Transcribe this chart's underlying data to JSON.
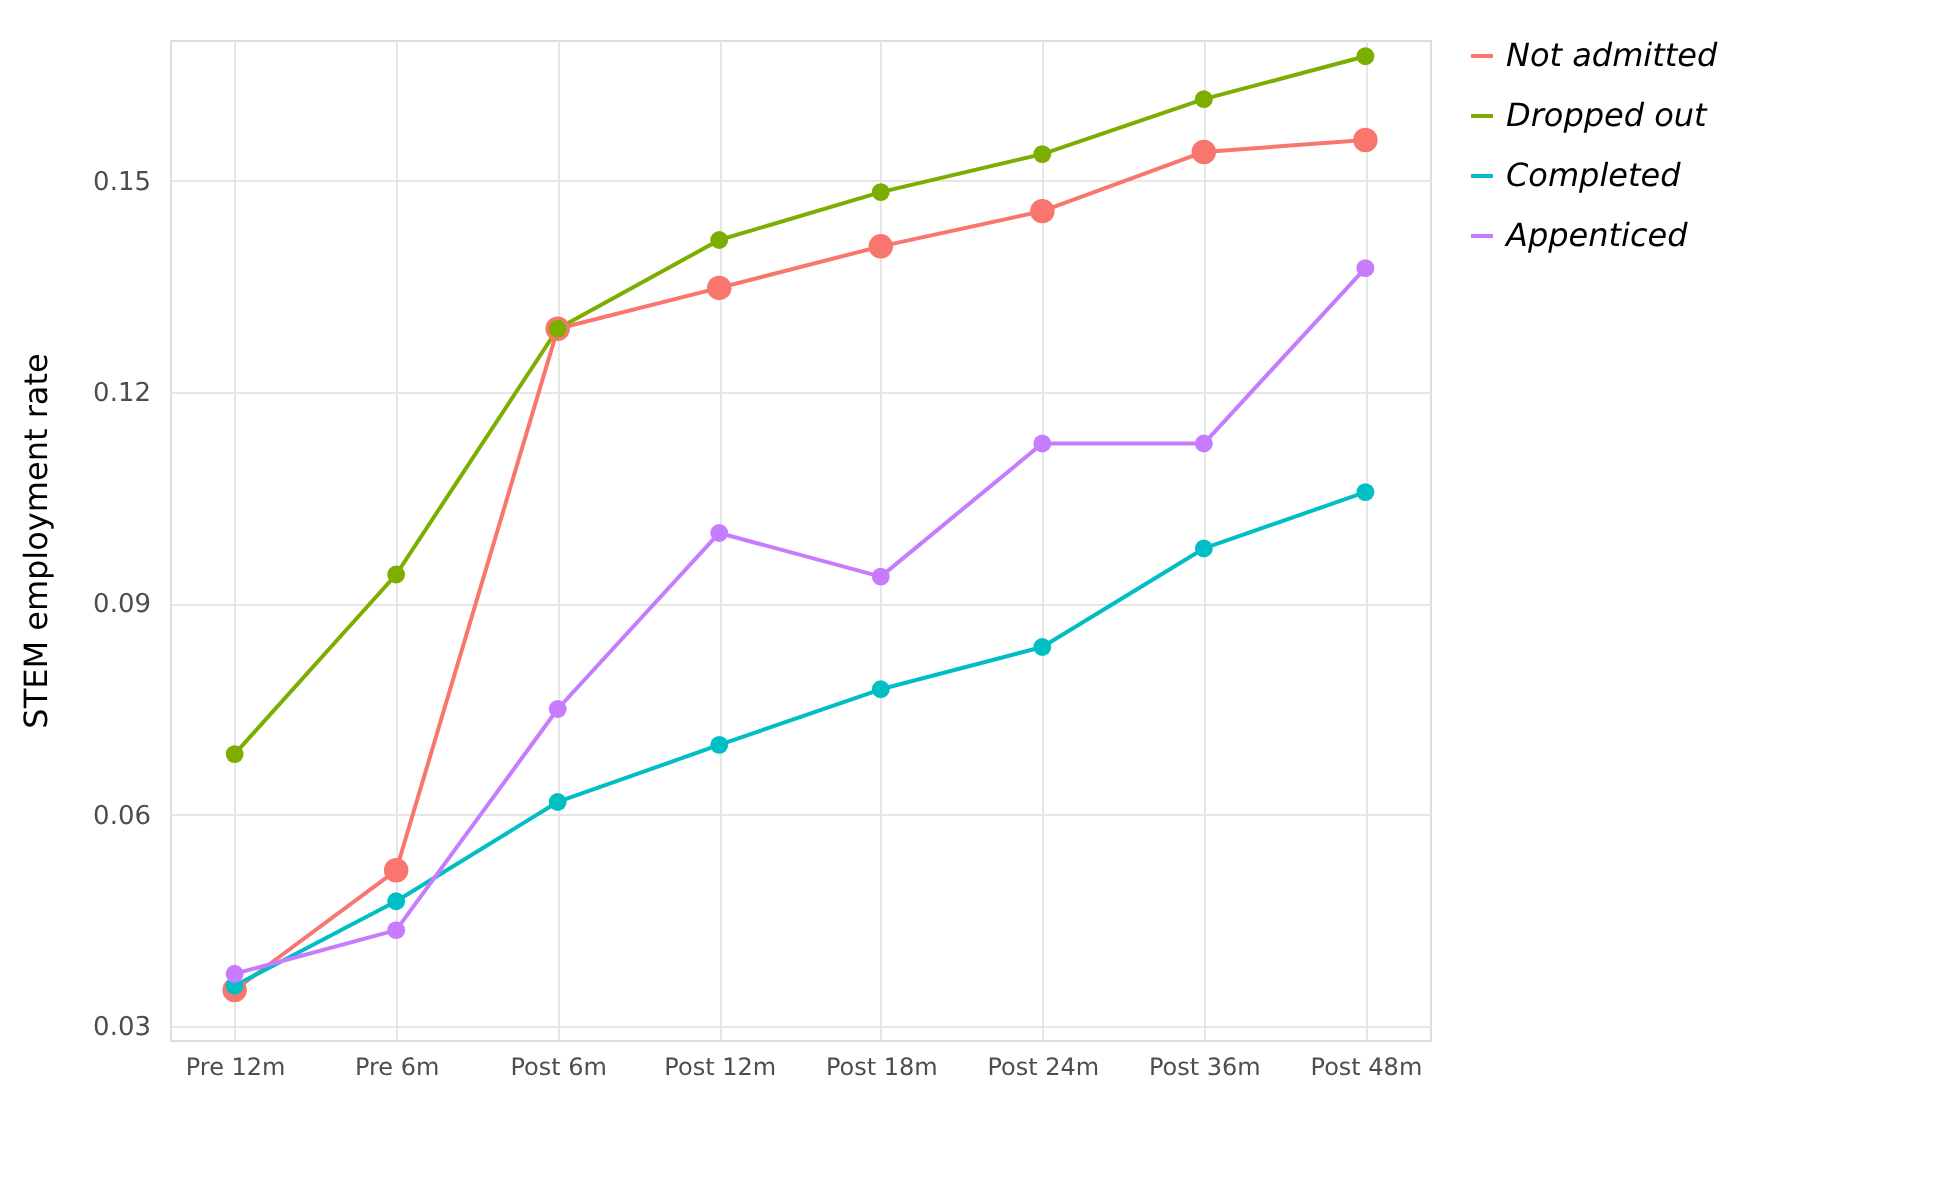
{
  "chart_data": {
    "type": "line",
    "ylabel": "STEM employment rate",
    "categories": [
      "Pre 12m",
      "Pre 6m",
      "Post 6m",
      "Post 12m",
      "Post 18m",
      "Post 24m",
      "Post 36m",
      "Post 48m"
    ],
    "series": [
      {
        "name": "Not admitted",
        "color": "#f8766d",
        "values": [
          0.0351,
          0.0521,
          0.129,
          0.1348,
          0.1407,
          0.1457,
          0.1541,
          0.1558
        ]
      },
      {
        "name": "Dropped out",
        "color": "#7cae00",
        "values": [
          0.0686,
          0.0941,
          0.129,
          0.1416,
          0.1484,
          0.1538,
          0.1616,
          0.1677
        ]
      },
      {
        "name": "Completed",
        "color": "#00bfc4",
        "values": [
          0.0357,
          0.0477,
          0.0618,
          0.0699,
          0.0778,
          0.0838,
          0.0978,
          0.1058
        ]
      },
      {
        "name": "Appenticed",
        "color": "#c77cff",
        "values": [
          0.0374,
          0.0436,
          0.075,
          0.1,
          0.0938,
          0.1127,
          0.1127,
          0.1376
        ]
      }
    ],
    "ylim": [
      0.028,
      0.17
    ],
    "yticks": [
      0.03,
      0.06,
      0.09,
      0.12,
      0.15
    ],
    "grid": true,
    "legend": "right",
    "marker": "circle",
    "line_style": "solid"
  }
}
